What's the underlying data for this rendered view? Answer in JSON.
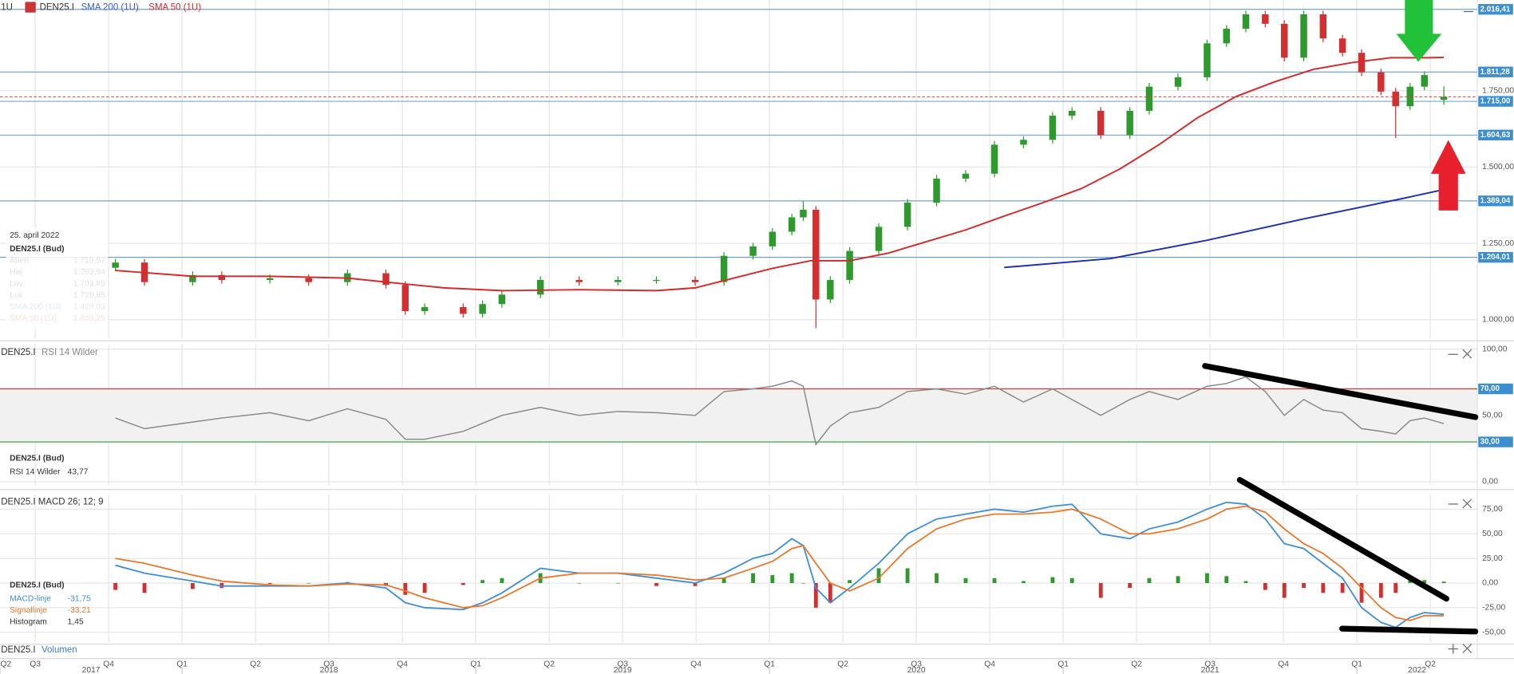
{
  "chart_data": [
    {
      "type": "candlestick",
      "interval": "1U",
      "symbol": "DEN25.I",
      "up_color": "#2e9a2e",
      "down_color": "#d23030",
      "x": [
        2017.773,
        2017.872,
        2018.036,
        2018.135,
        2018.299,
        2018.431,
        2018.563,
        2018.694,
        2018.76,
        2018.826,
        2018.957,
        2019.023,
        2019.089,
        2019.22,
        2019.352,
        2019.484,
        2019.615,
        2019.747,
        2019.845,
        2019.944,
        2020.01,
        2020.076,
        2020.115,
        2020.158,
        2020.207,
        2020.273,
        2020.372,
        2020.47,
        2020.569,
        2020.668,
        2020.766,
        2020.865,
        2020.964,
        2021.03,
        2021.128,
        2021.227,
        2021.293,
        2021.391,
        2021.49,
        2021.556,
        2021.622,
        2021.688,
        2021.753,
        2021.819,
        2021.885,
        2021.951,
        2022.016,
        2022.082,
        2022.132,
        2022.181,
        2022.23,
        2022.296
      ],
      "open": [
        1170,
        1187,
        1123,
        1146,
        1130,
        1136,
        1123,
        1152,
        1114,
        1028,
        1041,
        1019,
        1051,
        1082,
        1130,
        1123,
        1130,
        1130,
        1123,
        1209,
        1240,
        1288,
        1335,
        1360,
        1066,
        1130,
        1225,
        1304,
        1383,
        1462,
        1478,
        1573,
        1589,
        1668,
        1684,
        1604,
        1684,
        1763,
        1794,
        1905,
        1953,
        2000,
        1969,
        1858,
        2000,
        1921,
        1874,
        1810,
        1747,
        1699,
        1763,
        1719.97
      ],
      "high": [
        1199,
        1199,
        1158,
        1158,
        1148,
        1148,
        1164,
        1164,
        1126,
        1053,
        1053,
        1063,
        1094,
        1142,
        1142,
        1142,
        1142,
        1142,
        1221,
        1252,
        1300,
        1347,
        1388,
        1372,
        1142,
        1237,
        1316,
        1395,
        1474,
        1490,
        1585,
        1601,
        1680,
        1696,
        1696,
        1696,
        1775,
        1806,
        1917,
        1965,
        2012,
        2012,
        1981,
        2012,
        2012,
        1933,
        1886,
        1822,
        1759,
        1775,
        1813,
        1763.94
      ],
      "low": [
        1158,
        1111,
        1111,
        1118,
        1118,
        1111,
        1111,
        1102,
        1016,
        1016,
        1007,
        1007,
        1039,
        1070,
        1111,
        1111,
        1118,
        1111,
        1111,
        1197,
        1228,
        1276,
        1323,
        972,
        1054,
        1118,
        1213,
        1292,
        1371,
        1450,
        1466,
        1561,
        1577,
        1656,
        1592,
        1592,
        1672,
        1751,
        1782,
        1893,
        1941,
        1957,
        1846,
        1846,
        1909,
        1862,
        1798,
        1735,
        1595,
        1687,
        1751,
        1703.85
      ],
      "close": [
        1187,
        1123,
        1146,
        1130,
        1136,
        1123,
        1152,
        1114,
        1028,
        1041,
        1019,
        1051,
        1082,
        1130,
        1123,
        1130,
        1130,
        1123,
        1209,
        1240,
        1288,
        1335,
        1360,
        1066,
        1130,
        1225,
        1304,
        1383,
        1462,
        1478,
        1573,
        1589,
        1668,
        1684,
        1604,
        1684,
        1763,
        1794,
        1905,
        1953,
        2000,
        1969,
        1858,
        2000,
        1921,
        1874,
        1810,
        1747,
        1699,
        1763,
        1801,
        1729.85
      ],
      "overlays": [
        {
          "name": "SMA 200 (1U)",
          "color": "#1f2fb0",
          "x": [
            2020.799,
            2021.161,
            2021.49,
            2021.819,
            2022.148,
            2022.296
          ],
          "values": [
            1171,
            1200,
            1260,
            1330,
            1395,
            1426.03
          ]
        },
        {
          "name": "SMA 50 (1U)",
          "color": "#d42a2a",
          "x": [
            2017.773,
            2018.036,
            2018.299,
            2018.563,
            2018.694,
            2018.891,
            2019.089,
            2019.352,
            2019.615,
            2019.747,
            2019.878,
            2020.01,
            2020.141,
            2020.273,
            2020.405,
            2020.536,
            2020.668,
            2020.799,
            2020.931,
            2021.063,
            2021.194,
            2021.326,
            2021.457,
            2021.589,
            2021.72,
            2021.852,
            2021.984,
            2022.115,
            2022.247,
            2022.296
          ],
          "values": [
            1161,
            1142,
            1142,
            1136,
            1123,
            1104,
            1095,
            1098,
            1095,
            1104,
            1136,
            1168,
            1193,
            1193,
            1218,
            1256,
            1294,
            1339,
            1383,
            1430,
            1494,
            1573,
            1661,
            1731,
            1779,
            1820,
            1842,
            1858,
            1858,
            1859.25
          ]
        }
      ],
      "levels": [
        {
          "value": 2016.41,
          "label": "2.016,41"
        },
        {
          "value": 1811.28,
          "label": "1.811,28"
        },
        {
          "value": 1715,
          "label": "1.715,00"
        },
        {
          "value": 1604.63,
          "label": "1.604,63"
        },
        {
          "value": 1389.04,
          "label": "1.389,04"
        },
        {
          "value": 1204.01,
          "label": "1.204,01"
        }
      ],
      "ylim": [
        940,
        2047
      ],
      "yticks": [
        {
          "value": 1000,
          "label": "1.000,00"
        },
        {
          "value": 1250,
          "label": "1.250,00"
        },
        {
          "value": 1500,
          "label": "1.500,00"
        },
        {
          "value": 1750,
          "label": "1.750,00"
        }
      ],
      "grid": true,
      "info": {
        "date": "25. april 2022",
        "title": "DEN25.I (Bud)",
        "rows": [
          [
            "Åben",
            "1.719,97"
          ],
          [
            "Høj",
            "1.763,94"
          ],
          [
            "Lav",
            "1.703,85"
          ],
          [
            "Luk",
            "1.729,85"
          ],
          [
            "SMA 200 (1U)",
            "1.426,03"
          ],
          [
            "SMA 50 (1U)",
            "1.859,25"
          ]
        ]
      }
    },
    {
      "type": "rsi",
      "symbol": "DEN25.I",
      "indicator": "RSI 14 Wilder",
      "color": "#888888",
      "values": [
        48,
        40,
        45,
        48,
        52,
        46,
        55,
        47,
        32,
        32,
        38,
        44,
        50,
        56,
        50,
        53,
        52,
        50,
        68,
        70,
        72,
        76,
        72,
        28,
        42,
        52,
        56,
        68,
        70,
        66,
        72,
        60,
        70,
        62,
        50,
        62,
        68,
        62,
        72,
        74,
        79,
        68,
        50,
        62,
        54,
        52,
        40,
        38,
        36,
        46,
        48,
        43.77
      ],
      "levels": [
        {
          "value": 70,
          "label": "70,00",
          "color": "#e03030"
        },
        {
          "value": 30,
          "label": "30,00",
          "color": "#2a9a2a"
        }
      ],
      "ylim": [
        -3,
        104
      ],
      "yticks": [
        {
          "value": 0,
          "label": "0,00"
        },
        {
          "value": 50,
          "label": "50,00"
        },
        {
          "value": 100,
          "label": "100,00"
        }
      ],
      "info": {
        "title": "DEN25.I (Bud)",
        "rows": [
          [
            "RSI 14 Wilder",
            "43,77"
          ]
        ]
      }
    },
    {
      "type": "macd",
      "title": "DEN25.I MACD 26; 12; 9",
      "series": [
        {
          "name": "MACD-linje",
          "color": "#3d8fd6",
          "values": [
            18,
            10,
            2,
            -3,
            -3,
            -3,
            0,
            -5,
            -20,
            -25,
            -27,
            -20,
            -10,
            15,
            10,
            10,
            5,
            0,
            10,
            25,
            30,
            45,
            38,
            -5,
            -20,
            -5,
            20,
            50,
            65,
            70,
            75,
            72,
            78,
            80,
            50,
            45,
            55,
            62,
            75,
            82,
            80,
            65,
            40,
            35,
            20,
            5,
            -25,
            -40,
            -45,
            -35,
            -30,
            -31.75
          ]
        },
        {
          "name": "Signallinje",
          "color": "#e8782c",
          "values": [
            25,
            20,
            8,
            2,
            -2,
            -3,
            -1,
            -2,
            -8,
            -15,
            -25,
            -23,
            -15,
            5,
            10,
            10,
            8,
            3,
            5,
            15,
            22,
            35,
            38,
            20,
            0,
            -8,
            5,
            35,
            55,
            65,
            70,
            70,
            72,
            75,
            65,
            50,
            50,
            55,
            65,
            75,
            78,
            72,
            55,
            40,
            30,
            15,
            -5,
            -25,
            -35,
            -38,
            -33,
            -33.21
          ]
        },
        {
          "name": "Histogram",
          "up_color": "#2e9a2e",
          "down_color": "#d23030",
          "values": [
            -7,
            -10,
            -6,
            -5,
            -1,
            0,
            1,
            -3,
            -12,
            -10,
            -2,
            3,
            5,
            10,
            0,
            0,
            -3,
            -3,
            5,
            10,
            8,
            10,
            0,
            -25,
            -20,
            3,
            15,
            15,
            10,
            5,
            5,
            2,
            6,
            5,
            -15,
            -5,
            5,
            7,
            10,
            7,
            2,
            -7,
            -15,
            -5,
            -10,
            -10,
            -20,
            -15,
            -10,
            3,
            3,
            1.45
          ]
        }
      ],
      "ylim": [
        -60,
        90
      ],
      "yticks": [
        {
          "value": -50,
          "label": "-50,00"
        },
        {
          "value": -25,
          "label": "-25,00"
        },
        {
          "value": 0,
          "label": "0,00"
        },
        {
          "value": 25,
          "label": "25,00"
        },
        {
          "value": 50,
          "label": "50,00"
        },
        {
          "value": 75,
          "label": "75,00"
        }
      ],
      "info": {
        "title": "DEN25.I (Bud)",
        "rows": [
          [
            "MACD-linje",
            "-31,75"
          ],
          [
            "Signallinje",
            "-33,21"
          ],
          [
            "Histogram",
            "1,45"
          ]
        ]
      }
    },
    {
      "type": "volume",
      "symbol": "DEN25.I",
      "indicator": "Volumen",
      "xlim": [
        2017.38,
        2022.41
      ],
      "xticks": [
        {
          "value": 2017.38,
          "label": "Q2"
        },
        {
          "value": 2017.5,
          "label": "Q3"
        },
        {
          "value": 2017.75,
          "label": "Q4"
        },
        {
          "value": 2018,
          "label": "Q1"
        },
        {
          "value": 2018.25,
          "label": "Q2"
        },
        {
          "value": 2018.5,
          "label": "Q3"
        },
        {
          "value": 2018.75,
          "label": "Q4"
        },
        {
          "value": 2019,
          "label": "Q1"
        },
        {
          "value": 2019.25,
          "label": "Q2"
        },
        {
          "value": 2019.5,
          "label": "Q3"
        },
        {
          "value": 2019.75,
          "label": "Q4"
        },
        {
          "value": 2020,
          "label": "Q1"
        },
        {
          "value": 2020.25,
          "label": "Q2"
        },
        {
          "value": 2020.5,
          "label": "Q3"
        },
        {
          "value": 2020.75,
          "label": "Q4"
        },
        {
          "value": 2021,
          "label": "Q1"
        },
        {
          "value": 2021.25,
          "label": "Q2"
        },
        {
          "value": 2021.5,
          "label": "Q3"
        },
        {
          "value": 2021.75,
          "label": "Q4"
        },
        {
          "value": 2022,
          "label": "Q1"
        },
        {
          "value": 2022.25,
          "label": "Q2"
        }
      ],
      "year_ticks": [
        2017,
        2018,
        2019,
        2020,
        2021,
        2022
      ]
    }
  ]
}
